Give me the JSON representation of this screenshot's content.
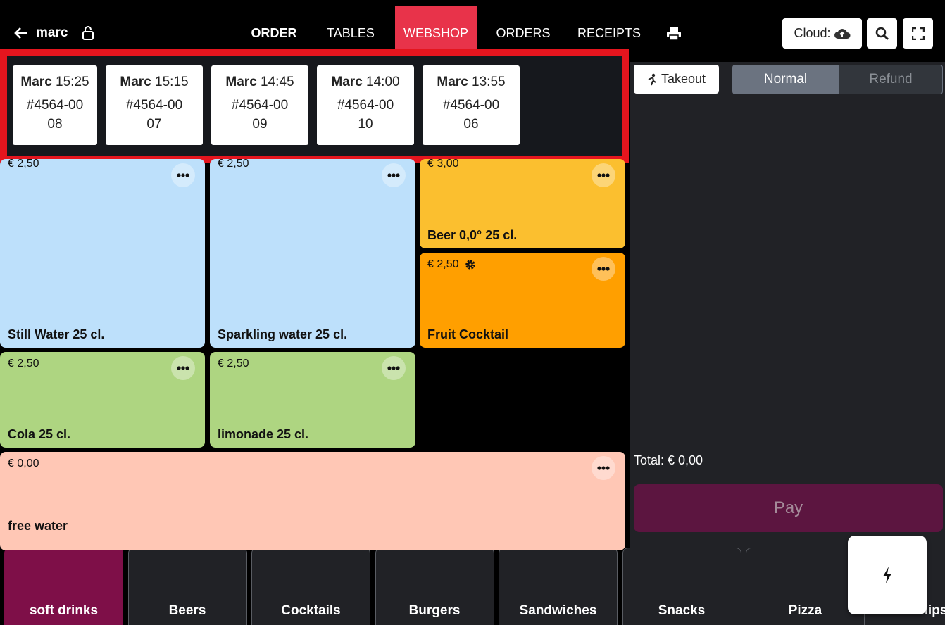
{
  "nav": {
    "user": "marc",
    "tabs": [
      "ORDER",
      "TABLES",
      "WEBSHOP",
      "ORDERS",
      "RECEIPTS"
    ],
    "cloud": "Cloud:"
  },
  "webshop_orders": [
    {
      "name": "Marc",
      "time": "15:25",
      "number": "#4564-0008"
    },
    {
      "name": "Marc",
      "time": "15:15",
      "number": "#4564-0007"
    },
    {
      "name": "Marc",
      "time": "14:45",
      "number": "#4564-0009"
    },
    {
      "name": "Marc",
      "time": "14:00",
      "number": "#4564-0010"
    },
    {
      "name": "Marc",
      "time": "13:55",
      "number": "#4564-0006"
    }
  ],
  "products": [
    {
      "price": "€ 2,50",
      "name": "Still Water 25 cl."
    },
    {
      "price": "€ 2,50",
      "name": "Sparkling water 25 cl."
    },
    {
      "price": "€ 3,00",
      "name": "Beer 0,0° 25 cl."
    },
    {
      "price": "€ 2,50",
      "name": "Fruit Cocktail"
    },
    {
      "price": "€ 2,50",
      "name": "Cola 25 cl."
    },
    {
      "price": "€ 2,50",
      "name": "limonade 25 cl."
    },
    {
      "price": "€ 0,00",
      "name": "free water"
    }
  ],
  "order_panel": {
    "takeout": "Takeout",
    "modes": [
      "Normal",
      "Refund"
    ],
    "total": "Total: € 0,00",
    "pay": "Pay"
  },
  "categories": [
    "soft drinks",
    "Beers",
    "Cocktails",
    "Burgers",
    "Sandwiches",
    "Snacks",
    "Pizza",
    "Chips"
  ]
}
